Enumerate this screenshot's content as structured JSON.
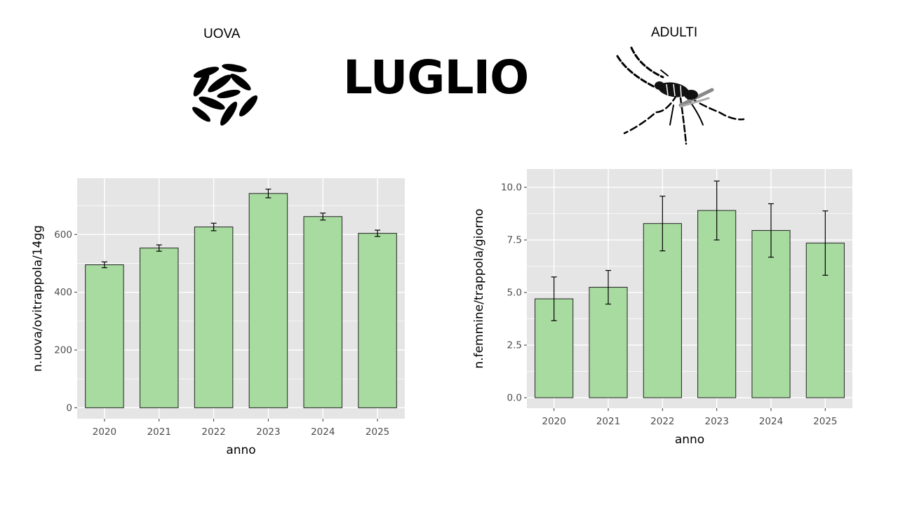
{
  "slide": {
    "title": "LUGLIO",
    "left_header": "UOVA",
    "right_header": "ADULTI",
    "left_icon": "eggs-icon",
    "right_icon": "mosquito-icon"
  },
  "colors": {
    "bar_fill": "#a8dba0",
    "panel_bg": "#e5e5e5",
    "grid": "#ffffff",
    "bar_stroke": "#222222"
  },
  "chart_data": [
    {
      "type": "bar",
      "title": "",
      "xlabel": "anno",
      "ylabel": "n.uova/ovitrappola/14gg",
      "categories": [
        "2020",
        "2021",
        "2022",
        "2023",
        "2024",
        "2025"
      ],
      "values": [
        495,
        553,
        626,
        742,
        662,
        604
      ],
      "errors": [
        10,
        11,
        13,
        15,
        12,
        11
      ],
      "ylim": [
        -38,
        795
      ],
      "yticks": [
        0,
        200,
        400,
        600
      ],
      "ytick_labels": [
        "0",
        "200",
        "400",
        "600"
      ],
      "grid": true,
      "legend": "none"
    },
    {
      "type": "bar",
      "title": "",
      "xlabel": "anno",
      "ylabel": "n.femmine/trappola/giorno",
      "categories": [
        "2020",
        "2021",
        "2022",
        "2023",
        "2024",
        "2025"
      ],
      "values": [
        4.7,
        5.25,
        8.28,
        8.9,
        7.95,
        7.35
      ],
      "errors": [
        1.04,
        0.8,
        1.3,
        1.4,
        1.27,
        1.53
      ],
      "ylim": [
        -0.5,
        10.87
      ],
      "yticks": [
        0,
        2.5,
        5.0,
        7.5,
        10.0
      ],
      "ytick_labels": [
        "0.0",
        "2.5",
        "5.0",
        "7.5",
        "10.0"
      ],
      "grid": true,
      "legend": "none"
    }
  ]
}
